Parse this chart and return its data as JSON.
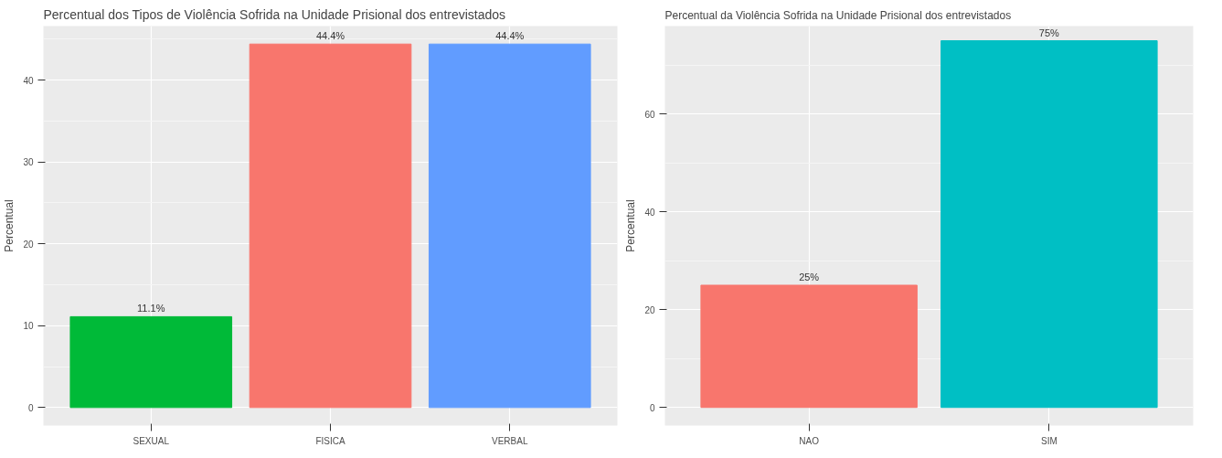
{
  "chart_data": [
    {
      "type": "bar",
      "title": "Percentual dos Tipos de Violência Sofrida na Unidade Prisional dos entrevistados",
      "ylabel": "Percentual",
      "categories": [
        "SEXUAL",
        "FISICA",
        "VERBAL"
      ],
      "values": [
        11.1,
        44.4,
        44.4
      ],
      "colors": [
        "#00ba38",
        "#f8766d",
        "#619cff"
      ],
      "value_labels": [
        "11.1%",
        "44.4%",
        "44.4%"
      ],
      "ylim": [
        -2.2,
        46.6
      ],
      "yticks": [
        0,
        10,
        20,
        30,
        40
      ],
      "grid": true
    },
    {
      "type": "bar",
      "title": "Percentual da Violência Sofrida na Unidade Prisional dos entrevistados",
      "ylabel": "Percentual",
      "categories": [
        "NAO",
        "SIM"
      ],
      "values": [
        25,
        75
      ],
      "colors": [
        "#f8766d",
        "#00bfc4"
      ],
      "value_labels": [
        "25%",
        "75%"
      ],
      "ylim": [
        -3.7,
        78
      ],
      "yticks": [
        0,
        20,
        40,
        60
      ],
      "grid": true
    }
  ]
}
